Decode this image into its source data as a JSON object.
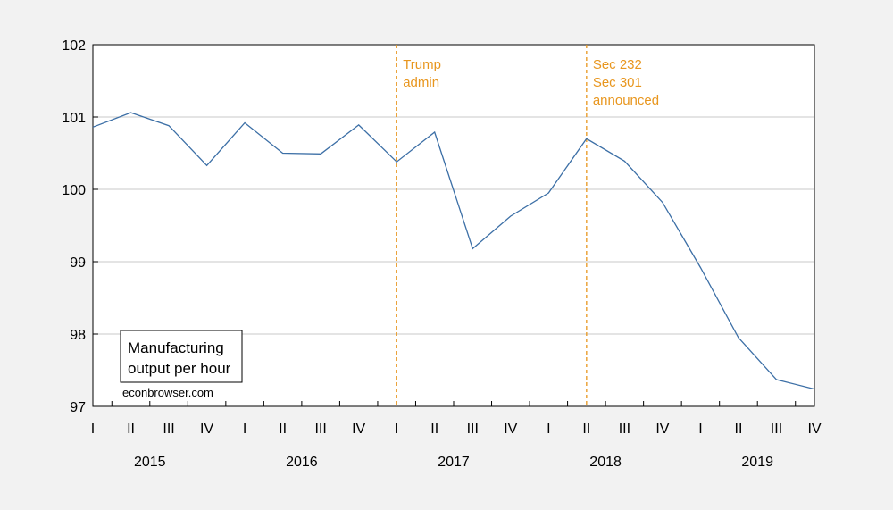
{
  "chart_data": {
    "type": "line",
    "title": "",
    "xlabel": "",
    "ylabel": "",
    "ylim": [
      97,
      102
    ],
    "yticks": [
      "97",
      "98",
      "99",
      "100",
      "101",
      "102"
    ],
    "grid": true,
    "quarter_labels": [
      "I",
      "II",
      "III",
      "IV",
      "I",
      "II",
      "III",
      "IV",
      "I",
      "II",
      "III",
      "IV",
      "I",
      "II",
      "III",
      "IV",
      "I",
      "II",
      "III",
      "IV"
    ],
    "years": [
      {
        "label": "2015",
        "start_q": 0
      },
      {
        "label": "2016",
        "start_q": 4
      },
      {
        "label": "2017",
        "start_q": 8
      },
      {
        "label": "2018",
        "start_q": 12
      },
      {
        "label": "2019",
        "start_q": 16
      }
    ],
    "x": [
      "2015Q1",
      "2015Q2",
      "2015Q3",
      "2015Q4",
      "2016Q1",
      "2016Q2",
      "2016Q3",
      "2016Q4",
      "2017Q1",
      "2017Q2",
      "2017Q3",
      "2017Q4",
      "2018Q1",
      "2018Q2",
      "2018Q3",
      "2018Q4",
      "2019Q1",
      "2019Q2",
      "2019Q3",
      "2019Q4"
    ],
    "series": [
      {
        "values": [
          100.86,
          101.06,
          100.88,
          100.33,
          100.92,
          100.5,
          100.49,
          100.89,
          100.38,
          100.79,
          99.18,
          99.63,
          99.95,
          100.7,
          100.39,
          99.82,
          98.92,
          97.95,
          97.37,
          97.24
        ]
      }
    ],
    "annotations": [
      {
        "at_q": 8,
        "lines": [
          "Trump",
          "admin"
        ]
      },
      {
        "at_q": 13,
        "lines": [
          "Sec 232",
          "Sec 301",
          "announced"
        ]
      }
    ],
    "legend": {
      "lines": [
        "Manufacturing",
        "output per hour"
      ],
      "placement": "bottom-left"
    },
    "watermark": "econbrowser.com",
    "colors": {
      "line": "#3c6fa6",
      "annotation": "#e8961e",
      "grid": "#c8c8c8",
      "background": "#f2f2f2",
      "plot_bg": "#ffffff"
    }
  }
}
